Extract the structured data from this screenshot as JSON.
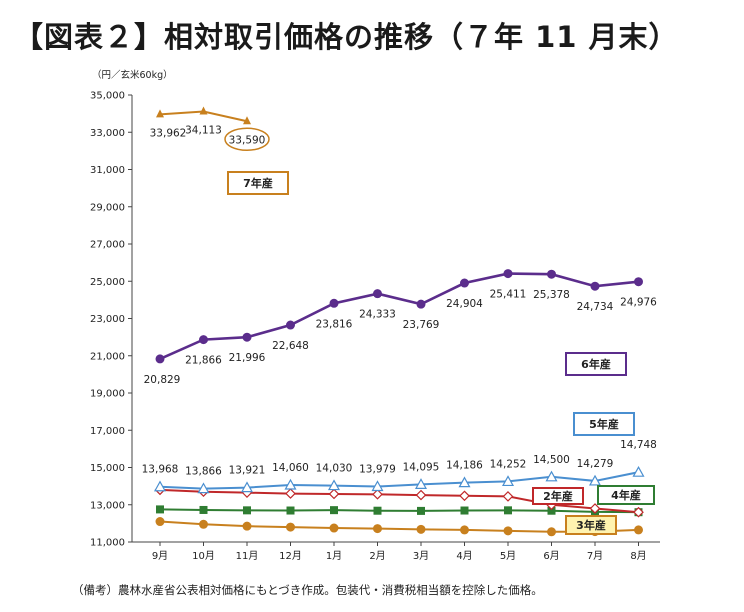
{
  "title": "【図表２】相対取引価格の推移（７年 11 月末）",
  "note": "（備考）農林水産省公表相対価格にもとづき作成。包装代・消費税相当額を控除した価格。",
  "chart_data": {
    "type": "line",
    "unit_label": "（円／玄米60kg）",
    "categories": [
      "9月",
      "10月",
      "11月",
      "12月",
      "1月",
      "2月",
      "3月",
      "4月",
      "5月",
      "6月",
      "7月",
      "8月"
    ],
    "ylim": [
      11000,
      35000
    ],
    "yticks": [
      11000,
      13000,
      15000,
      17000,
      19000,
      21000,
      23000,
      25000,
      27000,
      29000,
      31000,
      33000,
      35000
    ],
    "ytick_labels": [
      "11,000",
      "13,000",
      "15,000",
      "17,000",
      "19,000",
      "21,000",
      "23,000",
      "25,000",
      "27,000",
      "29,000",
      "31,000",
      "33,000",
      "35,000"
    ],
    "grid": false,
    "series": [
      {
        "name": "7年産",
        "color": "#c8801e",
        "marker": "arrow",
        "values": [
          33962,
          34113,
          33590,
          null,
          null,
          null,
          null,
          null,
          null,
          null,
          null,
          null
        ],
        "labels": [
          "33,962",
          "34,113",
          "33,590",
          "",
          "",
          "",
          "",
          "",
          "",
          "",
          "",
          ""
        ]
      },
      {
        "name": "6年産",
        "color": "#5b2d8c",
        "marker": "circle",
        "values": [
          20829,
          21866,
          21996,
          22648,
          23816,
          24333,
          23769,
          24904,
          25411,
          25378,
          24734,
          24976
        ],
        "labels": [
          "20,829",
          "21,866",
          "21,996",
          "22,648",
          "23,816",
          "24,333",
          "23,769",
          "24,904",
          "25,411",
          "25,378",
          "24,734",
          "24,976"
        ]
      },
      {
        "name": "5年産",
        "color": "#4a8fd0",
        "marker": "triangle",
        "values": [
          13968,
          13866,
          13921,
          14060,
          14030,
          13979,
          14095,
          14186,
          14252,
          14500,
          14279,
          14748
        ],
        "labels": [
          "13,968",
          "13,866",
          "13,921",
          "14,060",
          "14,030",
          "13,979",
          "14,095",
          "14,186",
          "14,252",
          "14,500",
          "14,279",
          "14,748"
        ]
      },
      {
        "name": "2年産",
        "color": "#c0282a",
        "marker": "diamond",
        "values": [
          13800,
          13700,
          13650,
          13600,
          13580,
          13560,
          13520,
          13480,
          13450,
          13000,
          12800,
          12600
        ],
        "labels": [
          "",
          "",
          "",
          "",
          "",
          "",
          "",
          "",
          "",
          "",
          "",
          ""
        ]
      },
      {
        "name": "4年産",
        "color": "#2f7d32",
        "marker": "square",
        "values": [
          12750,
          12720,
          12700,
          12690,
          12710,
          12680,
          12670,
          12690,
          12700,
          12680,
          12620,
          12600
        ],
        "labels": [
          "",
          "",
          "",
          "",
          "",
          "",
          "",
          "",
          "",
          "",
          "",
          ""
        ]
      },
      {
        "name": "3年産",
        "color": "#c8801e",
        "marker": "circle",
        "values": [
          12100,
          11950,
          11850,
          11800,
          11750,
          11720,
          11680,
          11650,
          11600,
          11550,
          11560,
          11650
        ],
        "labels": [
          "",
          "",
          "",
          "",
          "",
          "",
          "",
          "",
          "",
          "",
          "",
          ""
        ]
      }
    ],
    "tags": [
      {
        "text": "7年産",
        "color": "#c8801e"
      },
      {
        "text": "6年産",
        "color": "#5b2d8c"
      },
      {
        "text": "5年産",
        "color": "#4a8fd0"
      },
      {
        "text": "2年産",
        "color": "#c0282a"
      },
      {
        "text": "4年産",
        "color": "#2f7d32"
      },
      {
        "text": "3年産",
        "color": "#c8801e"
      }
    ],
    "highlight": {
      "series": "7年産",
      "index": 2
    }
  }
}
